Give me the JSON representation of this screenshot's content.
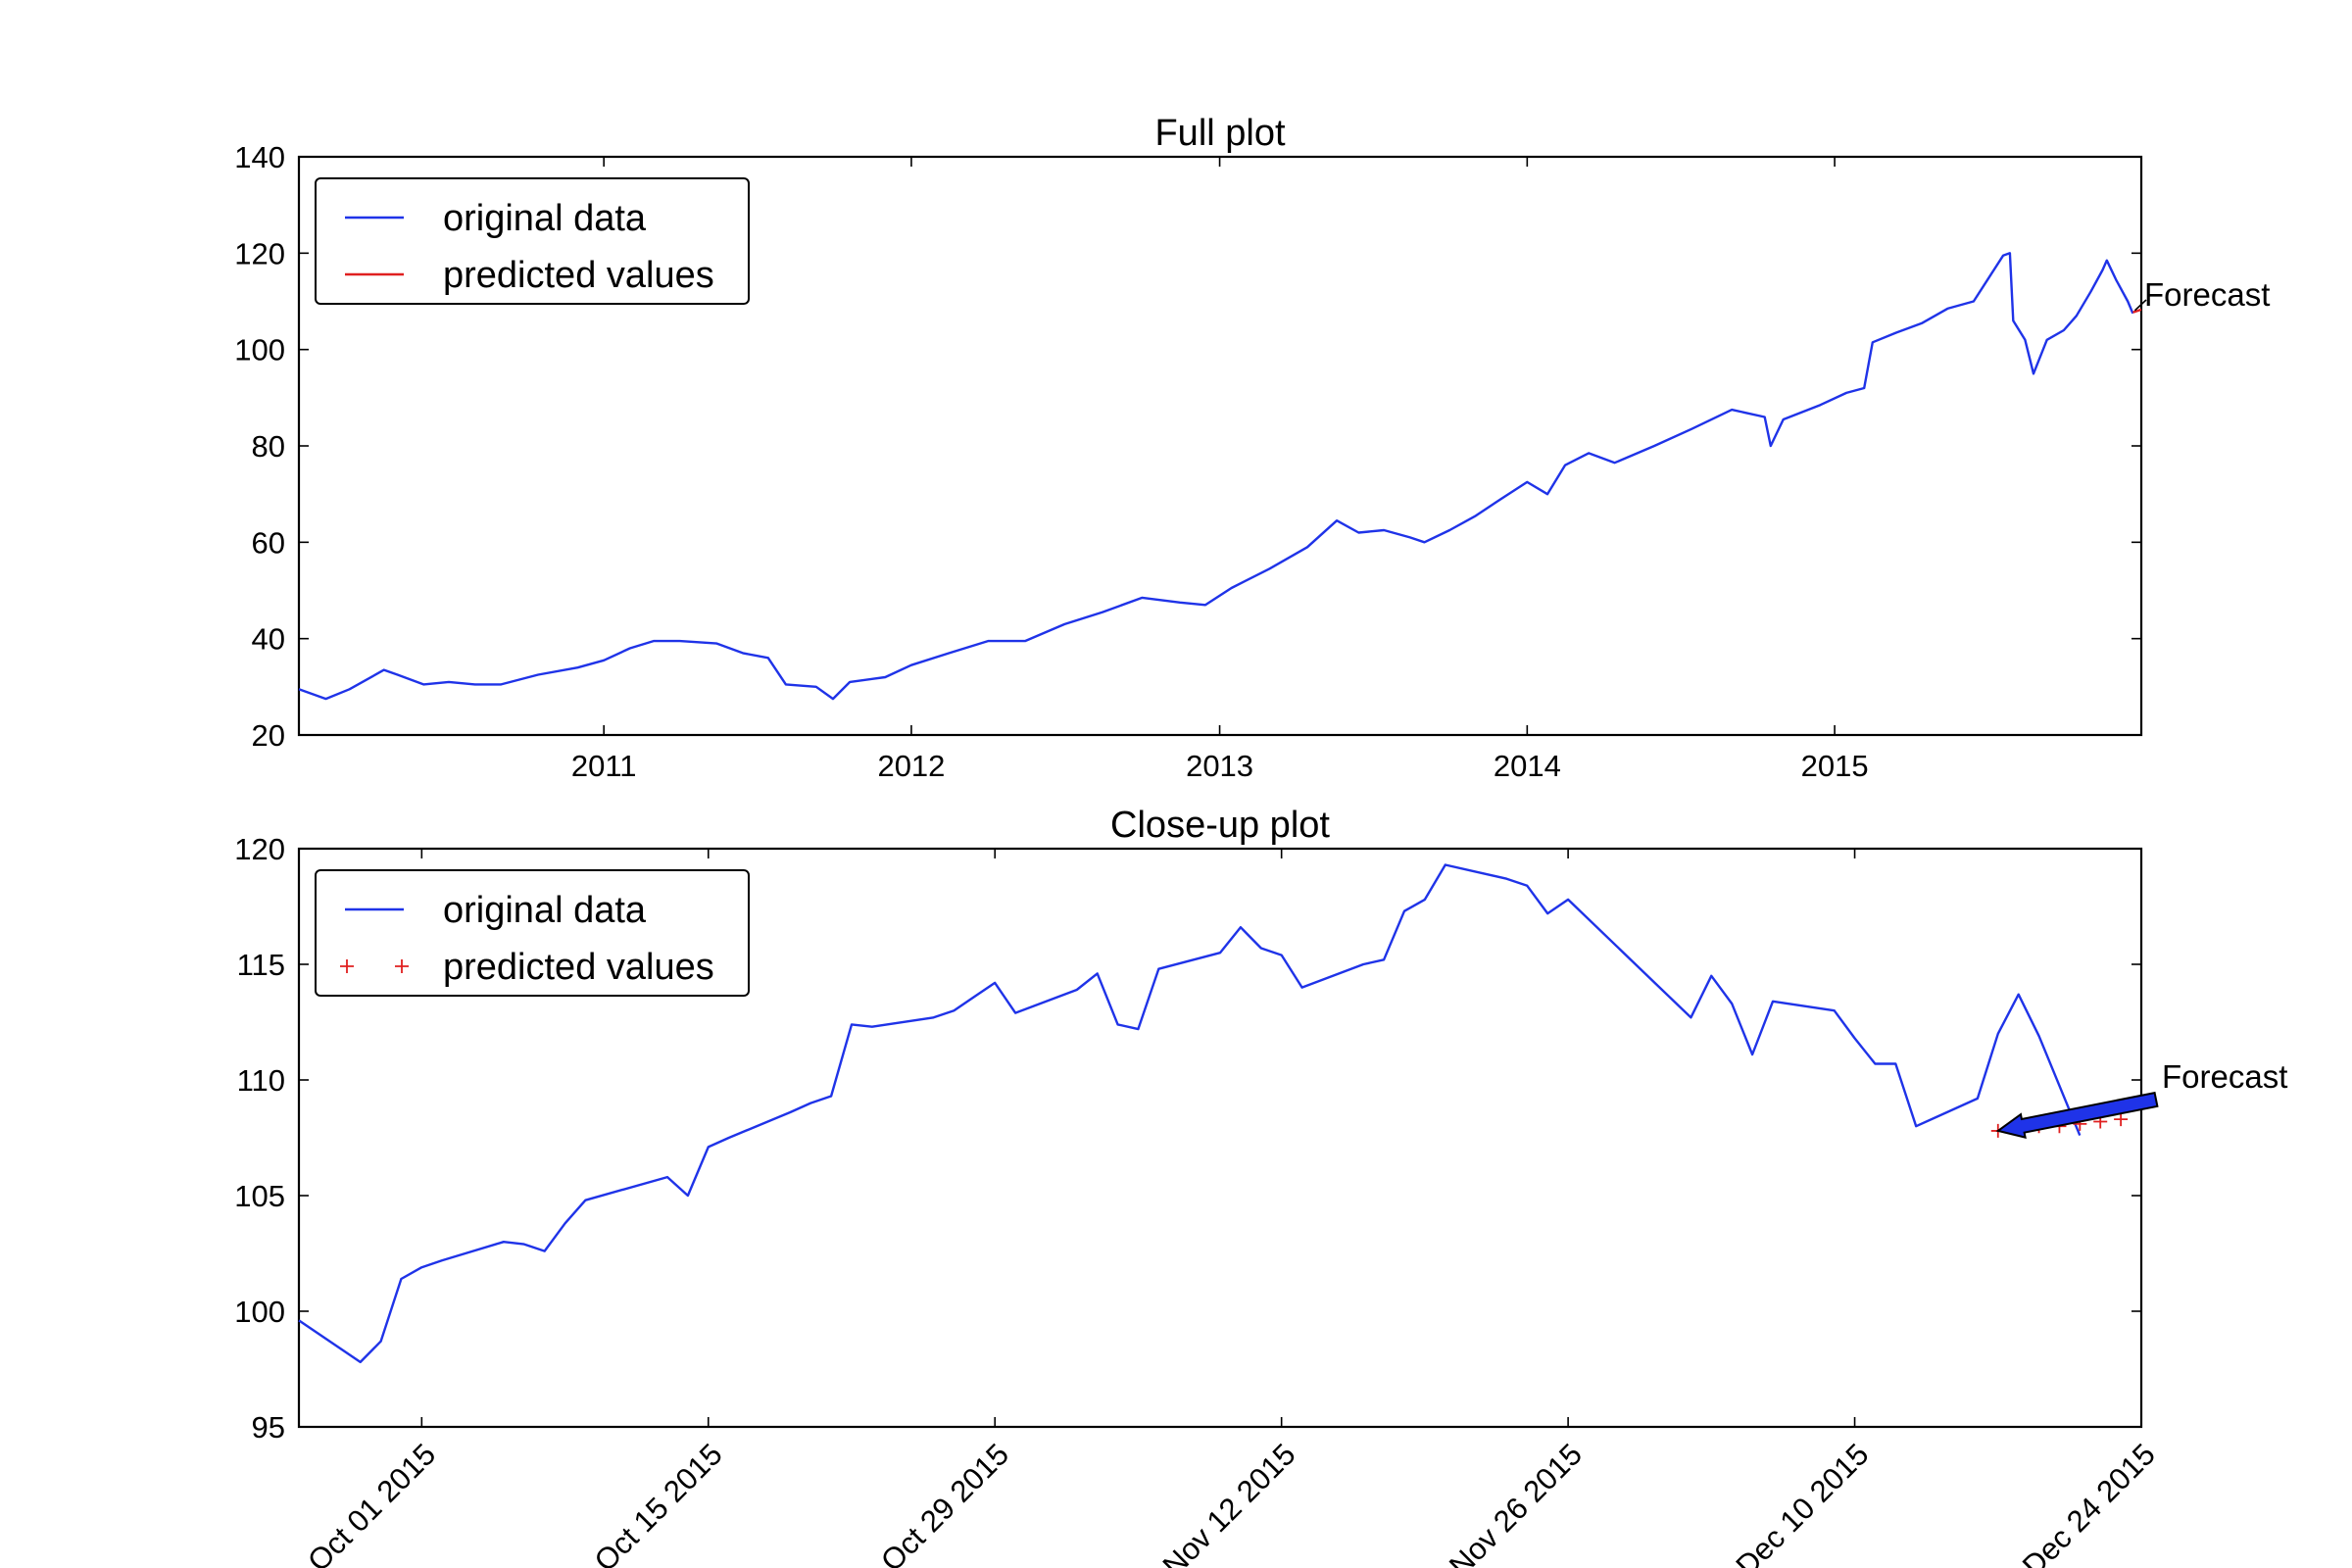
{
  "chart_data": [
    {
      "type": "line",
      "title": "Full plot",
      "xlabel": "",
      "ylabel": "",
      "x_range": [
        "2010-01-04",
        "2015-12-31"
      ],
      "ylim": [
        20,
        140
      ],
      "yticks": [
        20,
        40,
        60,
        80,
        100,
        120,
        140
      ],
      "xticks": [
        {
          "x": "2011-01-01",
          "label": "2011"
        },
        {
          "x": "2012-01-01",
          "label": "2012"
        },
        {
          "x": "2013-01-01",
          "label": "2013"
        },
        {
          "x": "2014-01-01",
          "label": "2014"
        },
        {
          "x": "2015-01-01",
          "label": "2015"
        }
      ],
      "legend_position": "top-left",
      "grid": false,
      "series": [
        {
          "name": "original data",
          "color": "#1f33e8",
          "style": "line",
          "points": [
            [
              "2010-01-04",
              29.5
            ],
            [
              "2010-02-05",
              27.5
            ],
            [
              "2010-03-05",
              29.5
            ],
            [
              "2010-04-15",
              33.5
            ],
            [
              "2010-05-01",
              32.5
            ],
            [
              "2010-06-01",
              30.5
            ],
            [
              "2010-07-01",
              31.0
            ],
            [
              "2010-08-01",
              30.5
            ],
            [
              "2010-09-01",
              30.5
            ],
            [
              "2010-10-15",
              32.5
            ],
            [
              "2010-12-01",
              34.0
            ],
            [
              "2011-01-01",
              35.5
            ],
            [
              "2011-02-01",
              38.0
            ],
            [
              "2011-03-01",
              39.5
            ],
            [
              "2011-04-01",
              39.5
            ],
            [
              "2011-05-15",
              39.0
            ],
            [
              "2011-06-15",
              37.0
            ],
            [
              "2011-07-15",
              36.0
            ],
            [
              "2011-08-05",
              30.5
            ],
            [
              "2011-09-10",
              30.0
            ],
            [
              "2011-09-30",
              27.5
            ],
            [
              "2011-10-20",
              31.0
            ],
            [
              "2011-12-01",
              32.0
            ],
            [
              "2012-01-01",
              34.5
            ],
            [
              "2012-02-15",
              37.0
            ],
            [
              "2012-04-01",
              39.5
            ],
            [
              "2012-05-15",
              39.5
            ],
            [
              "2012-07-01",
              43.0
            ],
            [
              "2012-08-15",
              45.5
            ],
            [
              "2012-10-01",
              48.5
            ],
            [
              "2012-11-15",
              47.5
            ],
            [
              "2012-12-15",
              47.0
            ],
            [
              "2013-01-15",
              50.5
            ],
            [
              "2013-03-01",
              54.5
            ],
            [
              "2013-04-15",
              59.0
            ],
            [
              "2013-05-20",
              64.5
            ],
            [
              "2013-06-15",
              62.0
            ],
            [
              "2013-07-15",
              62.5
            ],
            [
              "2013-08-15",
              61.0
            ],
            [
              "2013-09-01",
              60.0
            ],
            [
              "2013-10-01",
              62.5
            ],
            [
              "2013-11-01",
              65.5
            ],
            [
              "2013-12-01",
              69.0
            ],
            [
              "2014-01-01",
              72.5
            ],
            [
              "2014-01-25",
              70.0
            ],
            [
              "2014-02-15",
              76.0
            ],
            [
              "2014-03-15",
              78.5
            ],
            [
              "2014-04-15",
              76.5
            ],
            [
              "2014-06-01",
              80.0
            ],
            [
              "2014-07-15",
              83.5
            ],
            [
              "2014-09-01",
              87.5
            ],
            [
              "2014-10-10",
              86.0
            ],
            [
              "2014-10-17",
              80.0
            ],
            [
              "2014-11-01",
              85.5
            ],
            [
              "2014-12-15",
              88.5
            ],
            [
              "2015-01-15",
              91.0
            ],
            [
              "2015-02-05",
              92.0
            ],
            [
              "2015-02-15",
              101.5
            ],
            [
              "2015-03-15",
              103.5
            ],
            [
              "2015-04-15",
              105.5
            ],
            [
              "2015-05-15",
              108.5
            ],
            [
              "2015-06-15",
              110.0
            ],
            [
              "2015-07-20",
              119.5
            ],
            [
              "2015-07-28",
              120.0
            ],
            [
              "2015-08-01",
              106.0
            ],
            [
              "2015-08-15",
              102.0
            ],
            [
              "2015-08-25",
              95.0
            ],
            [
              "2015-09-10",
              102.0
            ],
            [
              "2015-09-30",
              104.0
            ],
            [
              "2015-10-15",
              107.0
            ],
            [
              "2015-11-01",
              112.0
            ],
            [
              "2015-11-15",
              116.5
            ],
            [
              "2015-11-20",
              118.5
            ],
            [
              "2015-12-01",
              114.5
            ],
            [
              "2015-12-15",
              110.0
            ],
            [
              "2015-12-21",
              107.5
            ]
          ]
        },
        {
          "name": "predicted values",
          "color": "#e02020",
          "style": "line",
          "points": [
            [
              "2015-12-21",
              107.7
            ],
            [
              "2015-12-31",
              108.3
            ]
          ]
        }
      ],
      "annotations": [
        {
          "text": "Forecast",
          "arrow_to": [
            "2015-12-21",
            107.7
          ]
        }
      ]
    },
    {
      "type": "line",
      "title": "Close-up plot",
      "xlabel": "",
      "ylabel": "",
      "x_range": [
        "2015-09-25",
        "2015-12-24"
      ],
      "ylim": [
        95,
        120
      ],
      "yticks": [
        95,
        100,
        105,
        110,
        115,
        120
      ],
      "xticks": [
        {
          "x": "2015-10-01",
          "label": "Oct 01 2015"
        },
        {
          "x": "2015-10-15",
          "label": "Oct 15 2015"
        },
        {
          "x": "2015-10-29",
          "label": "Oct 29 2015"
        },
        {
          "x": "2015-11-12",
          "label": "Nov 12 2015"
        },
        {
          "x": "2015-11-26",
          "label": "Nov 26 2015"
        },
        {
          "x": "2015-12-10",
          "label": "Dec 10 2015"
        },
        {
          "x": "2015-12-24",
          "label": "Dec 24 2015"
        }
      ],
      "legend_position": "top-left",
      "grid": false,
      "series": [
        {
          "name": "original data",
          "color": "#1f33e8",
          "style": "line",
          "points": [
            [
              "2015-09-25",
              99.6
            ],
            [
              "2015-09-28",
              97.8
            ],
            [
              "2015-09-29",
              98.7
            ],
            [
              "2015-09-30",
              101.4
            ],
            [
              "2015-10-01",
              101.9
            ],
            [
              "2015-10-02",
              102.2
            ],
            [
              "2015-10-05",
              103.0
            ],
            [
              "2015-10-06",
              102.9
            ],
            [
              "2015-10-07",
              102.6
            ],
            [
              "2015-10-08",
              103.8
            ],
            [
              "2015-10-09",
              104.8
            ],
            [
              "2015-10-13",
              105.8
            ],
            [
              "2015-10-14",
              105.0
            ],
            [
              "2015-10-15",
              107.1
            ],
            [
              "2015-10-16",
              107.5
            ],
            [
              "2015-10-19",
              108.6
            ],
            [
              "2015-10-20",
              109.0
            ],
            [
              "2015-10-21",
              109.3
            ],
            [
              "2015-10-22",
              112.4
            ],
            [
              "2015-10-23",
              112.3
            ],
            [
              "2015-10-26",
              112.7
            ],
            [
              "2015-10-27",
              113.0
            ],
            [
              "2015-10-28",
              113.6
            ],
            [
              "2015-10-29",
              114.2
            ],
            [
              "2015-10-30",
              112.9
            ],
            [
              "2015-11-02",
              113.9
            ],
            [
              "2015-11-03",
              114.6
            ],
            [
              "2015-11-04",
              112.4
            ],
            [
              "2015-11-05",
              112.2
            ],
            [
              "2015-11-06",
              114.8
            ],
            [
              "2015-11-09",
              115.5
            ],
            [
              "2015-11-10",
              116.6
            ],
            [
              "2015-11-11",
              115.7
            ],
            [
              "2015-11-12",
              115.4
            ],
            [
              "2015-11-13",
              114.0
            ],
            [
              "2015-11-16",
              115.0
            ],
            [
              "2015-11-17",
              115.2
            ],
            [
              "2015-11-18",
              117.3
            ],
            [
              "2015-11-19",
              117.8
            ],
            [
              "2015-11-20",
              119.3
            ],
            [
              "2015-11-23",
              118.7
            ],
            [
              "2015-11-24",
              118.4
            ],
            [
              "2015-11-25",
              117.2
            ],
            [
              "2015-11-26",
              117.8
            ],
            [
              "2015-11-30",
              114.4
            ],
            [
              "2015-12-02",
              112.7
            ],
            [
              "2015-12-03",
              114.5
            ],
            [
              "2015-12-04",
              113.3
            ],
            [
              "2015-12-05",
              111.1
            ],
            [
              "2015-12-06",
              113.4
            ],
            [
              "2015-12-09",
              113.0
            ],
            [
              "2015-12-10",
              111.8
            ],
            [
              "2015-12-11",
              110.7
            ],
            [
              "2015-12-12",
              110.7
            ],
            [
              "2015-12-13",
              108.0
            ],
            [
              "2015-12-16",
              109.2
            ],
            [
              "2015-12-17",
              112.0
            ],
            [
              "2015-12-18",
              113.7
            ],
            [
              "2015-12-19",
              111.9
            ],
            [
              "2015-12-21",
              107.6
            ]
          ]
        },
        {
          "name": "predicted values",
          "color": "#e02020",
          "style": "markers",
          "marker": "+",
          "points": [
            [
              "2015-12-17",
              107.8
            ],
            [
              "2015-12-18",
              107.9
            ],
            [
              "2015-12-19",
              108.0
            ],
            [
              "2015-12-20",
              108.0
            ],
            [
              "2015-12-21",
              108.1
            ],
            [
              "2015-12-22",
              108.2
            ],
            [
              "2015-12-23",
              108.3
            ]
          ]
        }
      ],
      "annotations": [
        {
          "text": "Forecast",
          "arrow_to": [
            "2015-12-17",
            107.8
          ],
          "arrow_color": "#1f33e8"
        }
      ]
    }
  ]
}
